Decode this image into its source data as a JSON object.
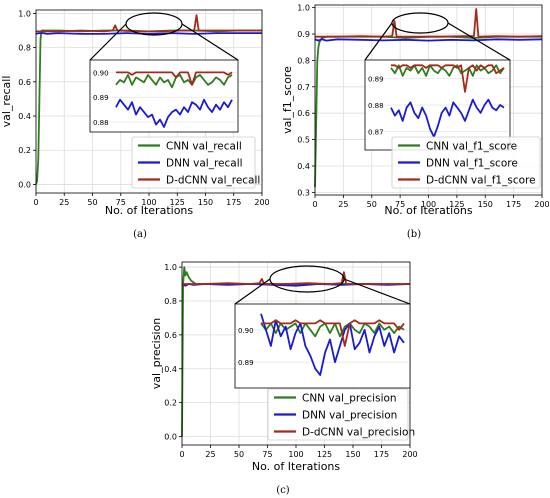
{
  "captions": [
    "(a)",
    "(b)",
    "(c)"
  ],
  "colors": {
    "cnn": "#2e7d1e",
    "dnn": "#1a1ad6",
    "ddcnn": "#a52a1a"
  },
  "chart_data": [
    {
      "type": "line",
      "xlabel": "No. of Iterations",
      "ylabel": "val_recall",
      "xlim": [
        0,
        200
      ],
      "ylim": [
        -0.05,
        1.02
      ],
      "xticks": [
        0,
        25,
        50,
        75,
        100,
        125,
        150,
        175,
        200
      ],
      "yticks": [
        0.0,
        0.2,
        0.4,
        0.6,
        0.8,
        1.0
      ],
      "ytick_labels": [
        "0.0",
        "0.2",
        "0.4",
        "0.6",
        "0.8",
        "1.0"
      ],
      "grid": true,
      "legend_position": "lower-right",
      "series": [
        {
          "name": "CNN val_recall",
          "color_key": "cnn",
          "x": [
            0,
            1,
            2,
            3,
            4,
            5,
            8,
            12,
            20,
            40,
            60,
            80,
            100,
            120,
            140,
            160,
            180,
            200
          ],
          "y": [
            0.0,
            0.02,
            0.15,
            0.5,
            0.85,
            0.9,
            0.9,
            0.9,
            0.9,
            0.895,
            0.9,
            0.9,
            0.895,
            0.9,
            0.9,
            0.895,
            0.9,
            0.9
          ]
        },
        {
          "name": "DNN val_recall",
          "color_key": "dnn",
          "x": [
            0,
            3,
            6,
            10,
            20,
            40,
            60,
            80,
            100,
            120,
            140,
            160,
            180,
            200
          ],
          "y": [
            0.88,
            0.885,
            0.885,
            0.88,
            0.885,
            0.88,
            0.88,
            0.885,
            0.88,
            0.885,
            0.88,
            0.885,
            0.885,
            0.885
          ]
        },
        {
          "name": "D-dCNN val_recall",
          "color_key": "ddcnn",
          "x": [
            0,
            20,
            40,
            60,
            68,
            70,
            72,
            90,
            110,
            130,
            140,
            142,
            144,
            160,
            180,
            200
          ],
          "y": [
            0.895,
            0.895,
            0.9,
            0.895,
            0.9,
            0.93,
            0.9,
            0.895,
            0.895,
            0.9,
            0.9,
            0.99,
            0.9,
            0.9,
            0.9,
            0.9
          ]
        }
      ],
      "inset": {
        "ytick_labels": [
          "0.90",
          "0.89",
          "0.88"
        ],
        "yticks": [
          0.9,
          0.89,
          0.88
        ],
        "ylim": [
          0.876,
          0.905
        ],
        "xlim": [
          80,
          135
        ],
        "series": [
          {
            "color_key": "cnn",
            "y": [
              0.895,
              0.897,
              0.896,
              0.899,
              0.895,
              0.898,
              0.897,
              0.896,
              0.899,
              0.897,
              0.895,
              0.898,
              0.896,
              0.897,
              0.894,
              0.898,
              0.899,
              0.896,
              0.897,
              0.895,
              0.898,
              0.899,
              0.897,
              0.895,
              0.896,
              0.898,
              0.897,
              0.895,
              0.898,
              0.899
            ]
          },
          {
            "color_key": "dnn",
            "y": [
              0.886,
              0.889,
              0.887,
              0.885,
              0.888,
              0.883,
              0.886,
              0.884,
              0.882,
              0.883,
              0.879,
              0.881,
              0.878,
              0.882,
              0.884,
              0.885,
              0.883,
              0.886,
              0.884,
              0.888,
              0.887,
              0.885,
              0.889,
              0.886,
              0.884,
              0.887,
              0.885,
              0.888,
              0.886,
              0.889
            ]
          },
          {
            "color_key": "ddcnn",
            "y": [
              0.9,
              0.9,
              0.9,
              0.9,
              0.899,
              0.9,
              0.9,
              0.9,
              0.9,
              0.9,
              0.9,
              0.9,
              0.9,
              0.9,
              0.9,
              0.898,
              0.9,
              0.9,
              0.9,
              0.895,
              0.9,
              0.9,
              0.9,
              0.9,
              0.9,
              0.9,
              0.9,
              0.9,
              0.899,
              0.9
            ]
          }
        ]
      }
    },
    {
      "type": "line",
      "xlabel": "No. of Iterations",
      "ylabel": "val_f1_score",
      "xlim": [
        0,
        200
      ],
      "ylim": [
        0.29,
        1.01
      ],
      "xticks": [
        0,
        25,
        50,
        75,
        100,
        125,
        150,
        175,
        200
      ],
      "yticks": [
        0.3,
        0.4,
        0.5,
        0.6,
        0.7,
        0.8,
        0.9,
        1.0
      ],
      "ytick_labels": [
        "0.3",
        "0.4",
        "0.5",
        "0.6",
        "0.7",
        "0.8",
        "0.9",
        "1.0"
      ],
      "grid": true,
      "legend_position": "lower-right",
      "series": [
        {
          "name": "CNN val_f1_score",
          "color_key": "cnn",
          "x": [
            0,
            1,
            2,
            3,
            4,
            6,
            10,
            20,
            40,
            60,
            80,
            100,
            120,
            140,
            160,
            180,
            200
          ],
          "y": [
            0.32,
            0.55,
            0.8,
            0.85,
            0.87,
            0.885,
            0.89,
            0.89,
            0.89,
            0.89,
            0.885,
            0.89,
            0.89,
            0.885,
            0.89,
            0.89,
            0.89
          ]
        },
        {
          "name": "DNN val_f1_score",
          "color_key": "dnn",
          "x": [
            0,
            3,
            6,
            10,
            20,
            40,
            60,
            80,
            100,
            120,
            140,
            160,
            180,
            200
          ],
          "y": [
            0.88,
            0.875,
            0.88,
            0.875,
            0.88,
            0.878,
            0.876,
            0.878,
            0.875,
            0.878,
            0.876,
            0.88,
            0.878,
            0.88
          ]
        },
        {
          "name": "D-dCNN val_f1_score",
          "color_key": "ddcnn",
          "x": [
            0,
            20,
            40,
            60,
            68,
            70,
            72,
            90,
            110,
            130,
            140,
            142,
            144,
            160,
            180,
            200
          ],
          "y": [
            0.89,
            0.89,
            0.892,
            0.89,
            0.892,
            0.95,
            0.89,
            0.89,
            0.89,
            0.892,
            0.892,
            0.995,
            0.89,
            0.892,
            0.89,
            0.892
          ]
        }
      ],
      "inset": {
        "ytick_labels": [
          "0.89",
          "0.88",
          "0.87"
        ],
        "yticks": [
          0.89,
          0.88,
          0.87
        ],
        "ylim": [
          0.863,
          0.897
        ],
        "xlim": [
          80,
          135
        ],
        "series": [
          {
            "color_key": "cnn",
            "y": [
              0.894,
              0.892,
              0.895,
              0.891,
              0.894,
              0.893,
              0.895,
              0.892,
              0.894,
              0.891,
              0.895,
              0.893,
              0.892,
              0.894,
              0.893,
              0.891,
              0.894,
              0.895,
              0.892,
              0.893,
              0.894,
              0.891,
              0.895,
              0.893,
              0.894,
              0.892,
              0.893,
              0.895,
              0.892,
              0.894
            ]
          },
          {
            "color_key": "dnn",
            "y": [
              0.879,
              0.876,
              0.878,
              0.874,
              0.879,
              0.881,
              0.877,
              0.875,
              0.879,
              0.876,
              0.871,
              0.868,
              0.872,
              0.877,
              0.879,
              0.876,
              0.881,
              0.879,
              0.877,
              0.874,
              0.878,
              0.882,
              0.879,
              0.877,
              0.88,
              0.882,
              0.879,
              0.878,
              0.88,
              0.879
            ]
          },
          {
            "color_key": "ddcnn",
            "y": [
              0.895,
              0.895,
              0.894,
              0.895,
              0.895,
              0.894,
              0.895,
              0.895,
              0.895,
              0.894,
              0.895,
              0.895,
              0.895,
              0.894,
              0.895,
              0.895,
              0.895,
              0.894,
              0.895,
              0.885,
              0.894,
              0.895,
              0.893,
              0.895,
              0.894,
              0.895,
              0.895,
              0.892,
              0.893,
              0.894
            ]
          }
        ]
      }
    },
    {
      "type": "line",
      "xlabel": "No. of Iterations",
      "ylabel": "val_precision",
      "xlim": [
        0,
        200
      ],
      "ylim": [
        -0.05,
        1.03
      ],
      "xticks": [
        0,
        25,
        50,
        75,
        100,
        125,
        150,
        175,
        200
      ],
      "yticks": [
        0.0,
        0.2,
        0.4,
        0.6,
        0.8,
        1.0
      ],
      "ytick_labels": [
        "0.0",
        "0.2",
        "0.4",
        "0.6",
        "0.8",
        "1.0"
      ],
      "grid": true,
      "legend_position": "lower-right",
      "series": [
        {
          "name": "CNN val_precision",
          "color_key": "cnn",
          "x": [
            0,
            1,
            2,
            3,
            4,
            6,
            8,
            12,
            20,
            40,
            60,
            80,
            100,
            120,
            140,
            160,
            180,
            200
          ],
          "y": [
            0.0,
            0.9,
            1.0,
            0.95,
            0.97,
            0.94,
            0.92,
            0.9,
            0.9,
            0.9,
            0.9,
            0.9,
            0.9,
            0.9,
            0.9,
            0.9,
            0.9,
            0.9
          ]
        },
        {
          "name": "DNN val_precision",
          "color_key": "dnn",
          "x": [
            0,
            3,
            6,
            10,
            20,
            40,
            60,
            80,
            100,
            120,
            140,
            160,
            180,
            200
          ],
          "y": [
            0.9,
            0.89,
            0.9,
            0.895,
            0.9,
            0.895,
            0.9,
            0.895,
            0.89,
            0.9,
            0.895,
            0.9,
            0.895,
            0.9
          ]
        },
        {
          "name": "D-dCNN val_precision",
          "color_key": "ddcnn",
          "x": [
            0,
            20,
            40,
            60,
            68,
            70,
            72,
            90,
            110,
            130,
            140,
            142,
            144,
            160,
            180,
            200
          ],
          "y": [
            0.9,
            0.9,
            0.905,
            0.9,
            0.905,
            0.93,
            0.9,
            0.9,
            0.905,
            0.9,
            0.905,
            0.97,
            0.9,
            0.9,
            0.9,
            0.9
          ]
        }
      ],
      "inset": {
        "ytick_labels": [
          "0.90",
          "0.89"
        ],
        "yticks": [
          0.9,
          0.89
        ],
        "ylim": [
          0.882,
          0.908
        ],
        "xlim": [
          80,
          135
        ],
        "series": [
          {
            "color_key": "cnn",
            "y": [
              0.902,
              0.9,
              0.902,
              0.899,
              0.902,
              0.9,
              0.901,
              0.902,
              0.899,
              0.902,
              0.9,
              0.898,
              0.901,
              0.902,
              0.899,
              0.902,
              0.898,
              0.901,
              0.902,
              0.9,
              0.899,
              0.902,
              0.901,
              0.899,
              0.902,
              0.9,
              0.901,
              0.899,
              0.901,
              0.9
            ]
          },
          {
            "color_key": "dnn",
            "y": [
              0.905,
              0.9,
              0.895,
              0.903,
              0.898,
              0.901,
              0.894,
              0.899,
              0.902,
              0.895,
              0.892,
              0.888,
              0.886,
              0.893,
              0.897,
              0.89,
              0.895,
              0.9,
              0.902,
              0.894,
              0.896,
              0.9,
              0.893,
              0.898,
              0.901,
              0.895,
              0.899,
              0.893,
              0.898,
              0.896
            ]
          },
          {
            "color_key": "ddcnn",
            "y": [
              0.902,
              0.902,
              0.902,
              0.903,
              0.902,
              0.902,
              0.902,
              0.903,
              0.902,
              0.902,
              0.902,
              0.902,
              0.903,
              0.902,
              0.902,
              0.902,
              0.902,
              0.895,
              0.902,
              0.903,
              0.902,
              0.902,
              0.902,
              0.902,
              0.903,
              0.902,
              0.902,
              0.902,
              0.9,
              0.902
            ]
          }
        ]
      }
    }
  ]
}
